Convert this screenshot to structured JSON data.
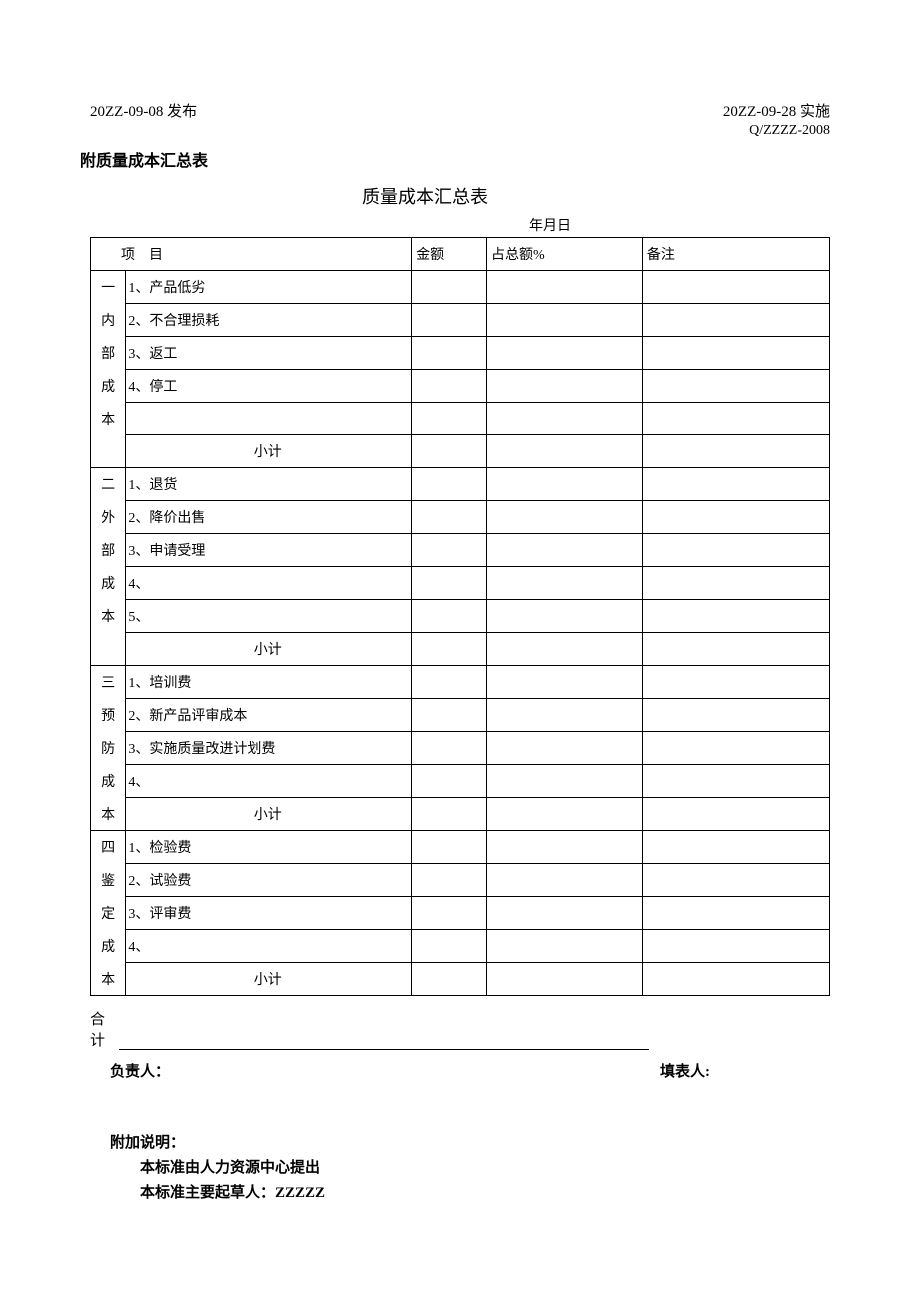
{
  "header": {
    "publish": "20ZZ-09-08 发布",
    "implement": "20ZZ-09-28 实施",
    "docCode": "Q/ZZZZ-2008"
  },
  "attachmentTitle": "附质量成本汇总表",
  "tableTitle": "质量成本汇总表",
  "dateLabel": "年月日",
  "tableHeader": {
    "item": "项　目",
    "amount": "金额",
    "percent": "占总额%",
    "remark": "备注"
  },
  "sections": [
    {
      "category": [
        "一",
        "内",
        "部",
        "成",
        "本",
        ""
      ],
      "items": [
        "1、产品低劣",
        "2、不合理损耗",
        "3、返工",
        "4、停工",
        ""
      ],
      "subtotal": "小计"
    },
    {
      "category": [
        "二",
        "外",
        "部",
        "成",
        "本",
        ""
      ],
      "items": [
        "1、退货",
        "2、降价出售",
        "3、申请受理",
        "4、",
        "5、"
      ],
      "subtotal": "小计"
    },
    {
      "category": [
        "三",
        "预",
        "防",
        "成",
        "本"
      ],
      "items": [
        "1、培训费",
        "2、新产品评审成本",
        "3、实施质量改进计划费",
        "4、"
      ],
      "subtotal": "小计"
    },
    {
      "category": [
        "四",
        "鉴",
        "定",
        "成",
        "本"
      ],
      "items": [
        "1、检验费",
        "2、试验费",
        "3、评审费",
        "4、"
      ],
      "subtotal": "小计"
    }
  ],
  "total": {
    "line1": "合",
    "line2": "计"
  },
  "signers": {
    "leader": "负责人：",
    "filler": "填表人:"
  },
  "appendix": {
    "title": "附加说明：",
    "line1": "本标准由人力资源中心提出",
    "line2": "本标准主要起草人：ZZZZZ"
  }
}
